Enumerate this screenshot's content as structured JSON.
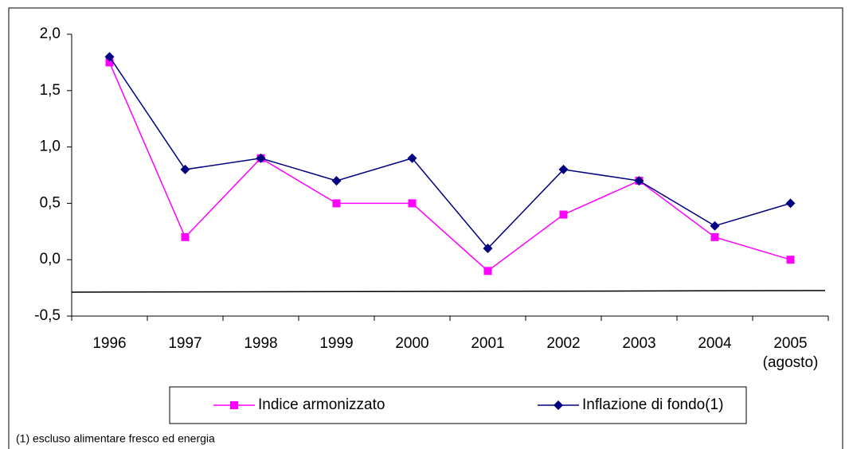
{
  "chart_data": {
    "type": "line",
    "categories": [
      "1996",
      "1997",
      "1998",
      "1999",
      "2000",
      "2001",
      "2002",
      "2003",
      "2004",
      "2005\n(agosto)"
    ],
    "series": [
      {
        "name": "Indice armonizzato",
        "color": "#ff00ff",
        "marker": "square",
        "values": [
          1.75,
          0.2,
          0.9,
          0.5,
          0.5,
          -0.1,
          0.4,
          0.7,
          0.2,
          0.0
        ]
      },
      {
        "name": "Inflazione di fondo(1)",
        "color": "#000080",
        "marker": "diamond",
        "values": [
          1.8,
          0.8,
          0.9,
          0.7,
          0.9,
          0.1,
          0.8,
          0.7,
          0.3,
          0.5
        ]
      }
    ],
    "ylim": [
      -0.5,
      2.0
    ],
    "yticks": [
      {
        "value": -0.5,
        "label": "-0,5"
      },
      {
        "value": 0.0,
        "label": "0,0"
      },
      {
        "value": 0.5,
        "label": "0,5"
      },
      {
        "value": 1.0,
        "label": "1,0"
      },
      {
        "value": 1.5,
        "label": "1,5"
      },
      {
        "value": 2.0,
        "label": "2,0"
      }
    ],
    "grid": false,
    "legend": "bottom",
    "footnote": "(1) escluso alimentare fresco ed energia"
  }
}
